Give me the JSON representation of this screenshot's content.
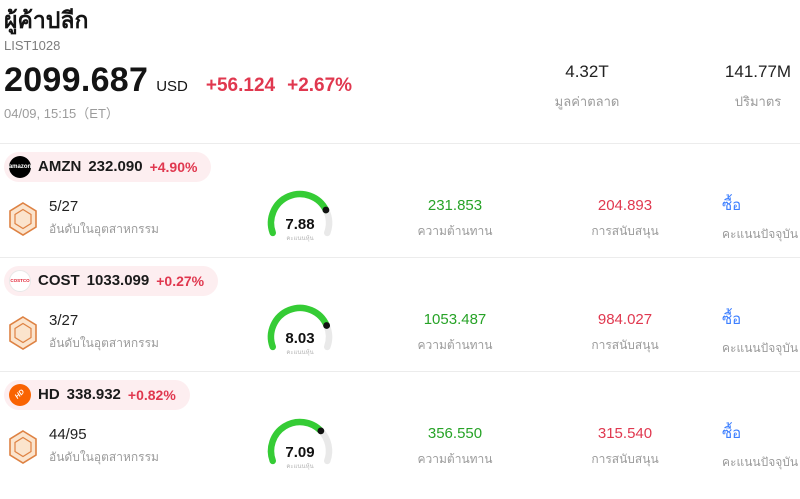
{
  "header": {
    "title": "ผู้ค้าปลีก",
    "list_id": "LIST1028",
    "price": "2099.687",
    "currency": "USD",
    "change_abs": "+56.124",
    "change_pct": "+2.67%",
    "datetime": "04/09, 15:15（ET）",
    "market_cap": {
      "value": "4.32T",
      "label": "มูลค่าตลาด"
    },
    "volume": {
      "value": "141.77M",
      "label": "ปริมาตร"
    }
  },
  "labels": {
    "industry_rank": "อันดับในอุตสาหกรรม",
    "stock_score": "คะแนนหุ้น",
    "resistance": "ความต้านทาน",
    "support": "การสนับสนุน",
    "current_score": "คะแนนปัจจุบัน"
  },
  "colors": {
    "red": "#e0384f",
    "green": "#27a327",
    "blue": "#3d7fff",
    "gauge-green": "#35cc35",
    "gauge-track": "#e9e9e9",
    "pill-bg": "#fdeef0"
  },
  "stocks": [
    {
      "ticker": "AMZN",
      "logo_text": "amazon",
      "price": "232.090",
      "change_pct": "+4.90%",
      "rank": "5/27",
      "score": "7.88",
      "resistance": "231.853",
      "support": "204.893",
      "action": "ซื้อ"
    },
    {
      "ticker": "COST",
      "logo_text": "COSTCO",
      "price": "1033.099",
      "change_pct": "+0.27%",
      "rank": "3/27",
      "score": "8.03",
      "resistance": "1053.487",
      "support": "984.027",
      "action": "ซื้อ"
    },
    {
      "ticker": "HD",
      "logo_text": "HD",
      "price": "338.932",
      "change_pct": "+0.82%",
      "rank": "44/95",
      "score": "7.09",
      "resistance": "356.550",
      "support": "315.540",
      "action": "ซื้อ"
    }
  ]
}
